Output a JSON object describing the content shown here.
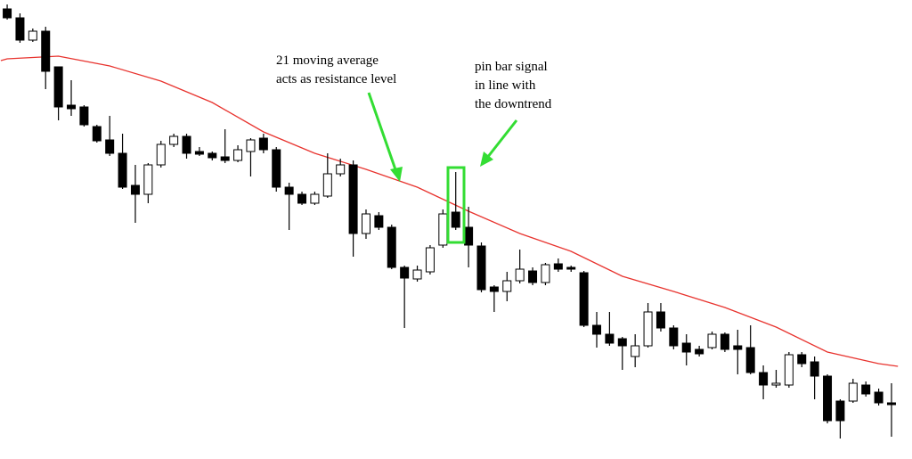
{
  "chart_data": {
    "type": "candlestick",
    "x": [
      1,
      2,
      3,
      4,
      5,
      6,
      7,
      8,
      9,
      10,
      11,
      12,
      13,
      14,
      15,
      16,
      17,
      18,
      19,
      20,
      21,
      22,
      23,
      24,
      25,
      26,
      27,
      28,
      29,
      30,
      31,
      32,
      33,
      34,
      35,
      36,
      37,
      38,
      39,
      40,
      41,
      42,
      43,
      44,
      45,
      46,
      47,
      48,
      49,
      50,
      51,
      52,
      53,
      54,
      55,
      56,
      57,
      58,
      59,
      60,
      61,
      62,
      63,
      64,
      65,
      66,
      67,
      68,
      69,
      70
    ],
    "open": [
      505,
      495,
      470,
      480,
      440,
      397,
      395,
      373,
      358,
      343,
      307,
      297,
      330,
      353,
      362,
      345,
      343,
      339,
      335,
      345,
      360,
      347,
      305,
      297,
      287,
      295,
      320,
      330,
      253,
      273,
      260,
      215,
      202,
      210,
      240,
      277,
      260,
      239,
      193,
      188,
      200,
      211,
      198,
      219,
      215,
      209,
      150,
      140,
      135,
      115,
      127,
      165,
      147,
      130,
      123,
      125,
      140,
      127,
      125,
      97,
      83,
      83,
      117,
      109,
      93,
      65,
      65,
      83,
      75,
      63
    ],
    "high": [
      510,
      500,
      483,
      485,
      440,
      425,
      397,
      375,
      385,
      365,
      330,
      332,
      357,
      365,
      365,
      350,
      345,
      370,
      352,
      360,
      365,
      350,
      310,
      300,
      300,
      343,
      337,
      335,
      280,
      277,
      263,
      217,
      217,
      240,
      280,
      322,
      283,
      243,
      195,
      210,
      235,
      215,
      220,
      225,
      217,
      211,
      165,
      165,
      137,
      140,
      175,
      175,
      150,
      140,
      127,
      143,
      142,
      145,
      150,
      105,
      100,
      120,
      120,
      115,
      95,
      67,
      90,
      87,
      79,
      85
    ],
    "low": [
      493,
      467,
      468,
      415,
      380,
      385,
      373,
      355,
      340,
      303,
      265,
      287,
      327,
      350,
      337,
      340,
      335,
      332,
      333,
      317,
      343,
      300,
      257,
      285,
      285,
      293,
      317,
      227,
      247,
      257,
      213,
      147,
      199,
      207,
      237,
      257,
      215,
      187,
      165,
      177,
      197,
      195,
      195,
      210,
      210,
      148,
      125,
      127,
      100,
      103,
      125,
      143,
      123,
      105,
      115,
      123,
      120,
      95,
      95,
      67,
      80,
      80,
      103,
      67,
      40,
      23,
      63,
      70,
      60,
      25
    ],
    "close": [
      495,
      470,
      480,
      435,
      395,
      393,
      375,
      357,
      343,
      305,
      297,
      330,
      353,
      362,
      343,
      342,
      338,
      335,
      347,
      358,
      347,
      305,
      297,
      287,
      297,
      320,
      330,
      253,
      275,
      260,
      215,
      203,
      212,
      237,
      275,
      260,
      240,
      190,
      188,
      200,
      213,
      198,
      218,
      213,
      213,
      150,
      140,
      130,
      127,
      127,
      165,
      147,
      127,
      120,
      118,
      140,
      123,
      123,
      97,
      83,
      85,
      117,
      107,
      93,
      43,
      43,
      85,
      73,
      63,
      61
    ],
    "up_color": "#ffffff",
    "down_color": "#000000",
    "moving_average": {
      "color": "#e8332e",
      "x": [
        0.5,
        1,
        5,
        9,
        13,
        17,
        21,
        25,
        29,
        33,
        37,
        41,
        45,
        49,
        53,
        57,
        61,
        65,
        69,
        70.5
      ],
      "values": [
        447,
        449,
        452,
        441,
        424,
        400,
        367,
        343,
        325,
        305,
        278,
        253,
        233,
        205,
        188,
        170,
        148,
        120,
        107,
        104
      ]
    },
    "annotations": [
      [
        "21 moving average",
        "acts as resistance level"
      ],
      [
        "pin bar signal",
        "in line with",
        "the downtrend"
      ]
    ],
    "annotation_color": "#33dd33",
    "xlim": [
      0.44,
      71.6
    ],
    "ylim": [
      0,
      515
    ]
  }
}
